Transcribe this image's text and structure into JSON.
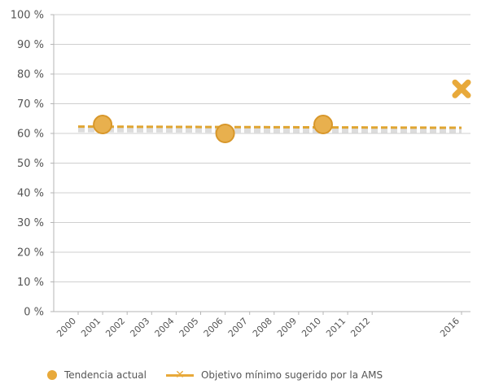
{
  "chart_data": {
    "type": "line",
    "x_categories": [
      "2000",
      "2001",
      "2002",
      "2003",
      "2004",
      "2005",
      "2006",
      "2007",
      "2008",
      "2009",
      "2010",
      "2011",
      "2012",
      "2016"
    ],
    "y_ticks": [
      "0 %",
      "10 %",
      "20 %",
      "30 %",
      "40 %",
      "50 %",
      "60 %",
      "70 %",
      "80 %",
      "90 %",
      "100 %"
    ],
    "ylim": [
      0,
      100
    ],
    "series": [
      {
        "name": "Tendencia actual",
        "color": "#e8a93a",
        "points": [
          {
            "x": "2001",
            "y": 63
          },
          {
            "x": "2006",
            "y": 60
          },
          {
            "x": "2010",
            "y": 63
          }
        ],
        "trend": {
          "from_x": "2000",
          "from_y": 62.3,
          "to_x": "2016",
          "to_y": 61.9
        }
      },
      {
        "name": "Objetivo mínimo sugerido por la AMS",
        "color": "#e8a93a",
        "points": [
          {
            "x": "2016",
            "y": 75
          }
        ]
      }
    ]
  },
  "legend": {
    "item1": "Tendencia actual",
    "item2": "Objetivo mínimo sugerido por la AMS"
  }
}
